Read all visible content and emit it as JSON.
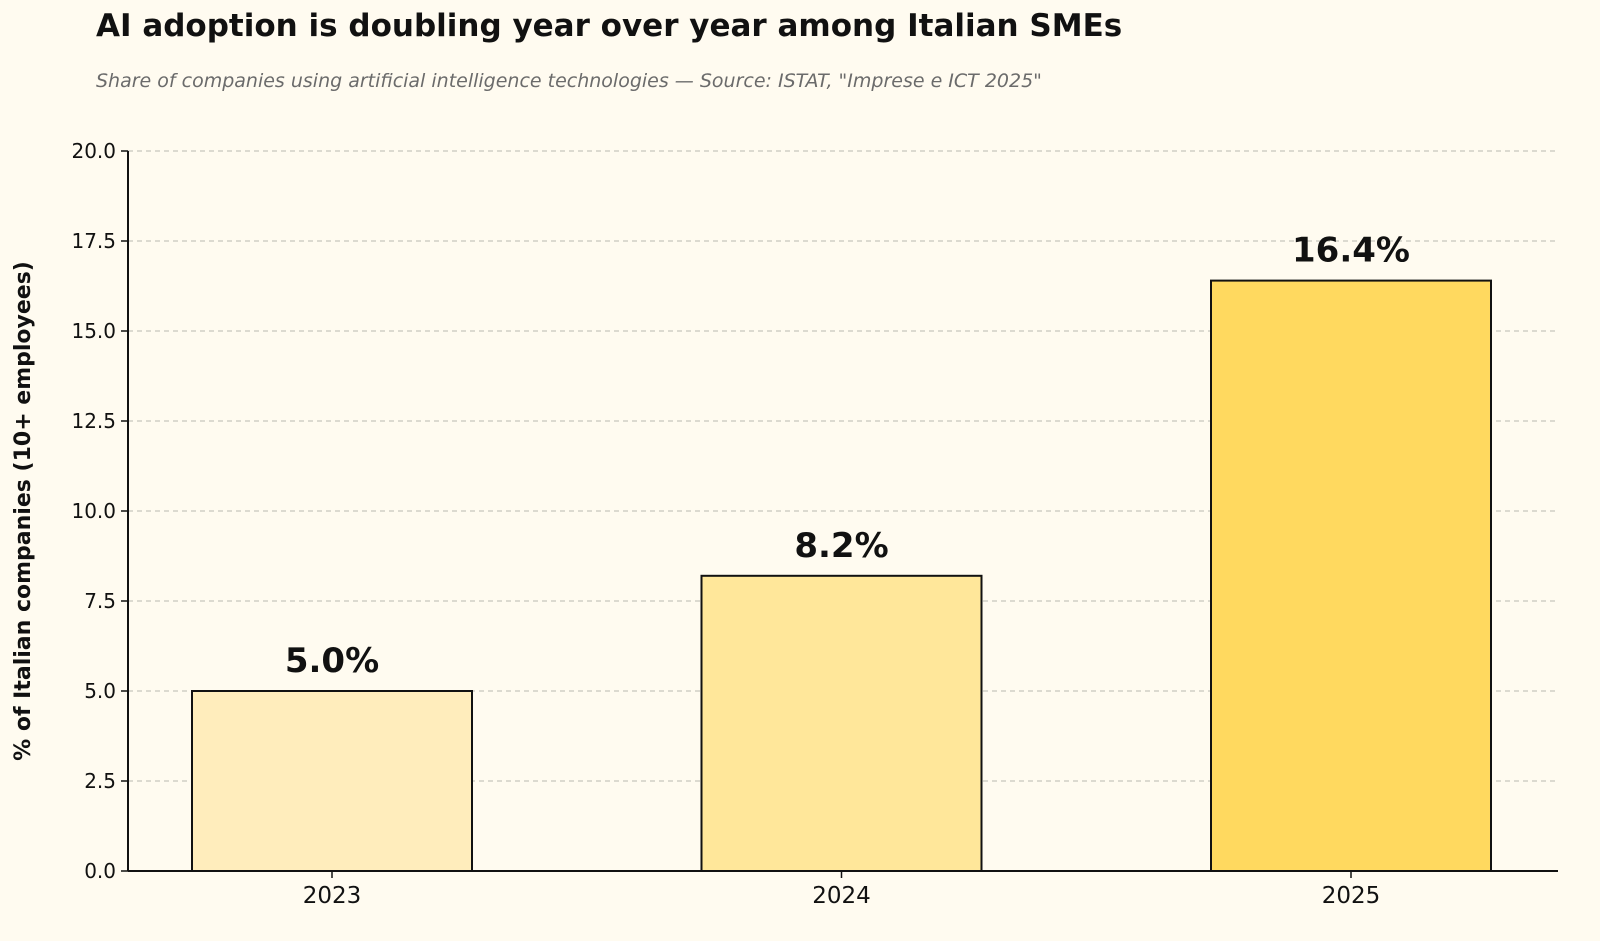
{
  "chart_data": {
    "type": "bar",
    "title": "AI adoption is doubling year over year among Italian SMEs",
    "subtitle": "Share of companies using artificial intelligence technologies — Source: ISTAT, \"Imprese e ICT 2025\"",
    "xlabel": "",
    "ylabel": "% of Italian companies (10+ employees)",
    "categories": [
      "2023",
      "2024",
      "2025"
    ],
    "values": [
      5.0,
      8.2,
      16.4
    ],
    "data_labels": [
      "5.0%",
      "8.2%",
      "16.4%"
    ],
    "ylim": [
      0,
      20
    ],
    "yticks": [
      "0.0",
      "2.5",
      "5.0",
      "7.5",
      "10.0",
      "12.5",
      "15.0",
      "17.5",
      "20.0"
    ],
    "grid": "horizontal dashed",
    "bar_colors": [
      "#ffedbc",
      "#ffe79a",
      "#ffd95f"
    ],
    "bar_edge_color": "#111111",
    "background_color": "#fffbf0"
  }
}
